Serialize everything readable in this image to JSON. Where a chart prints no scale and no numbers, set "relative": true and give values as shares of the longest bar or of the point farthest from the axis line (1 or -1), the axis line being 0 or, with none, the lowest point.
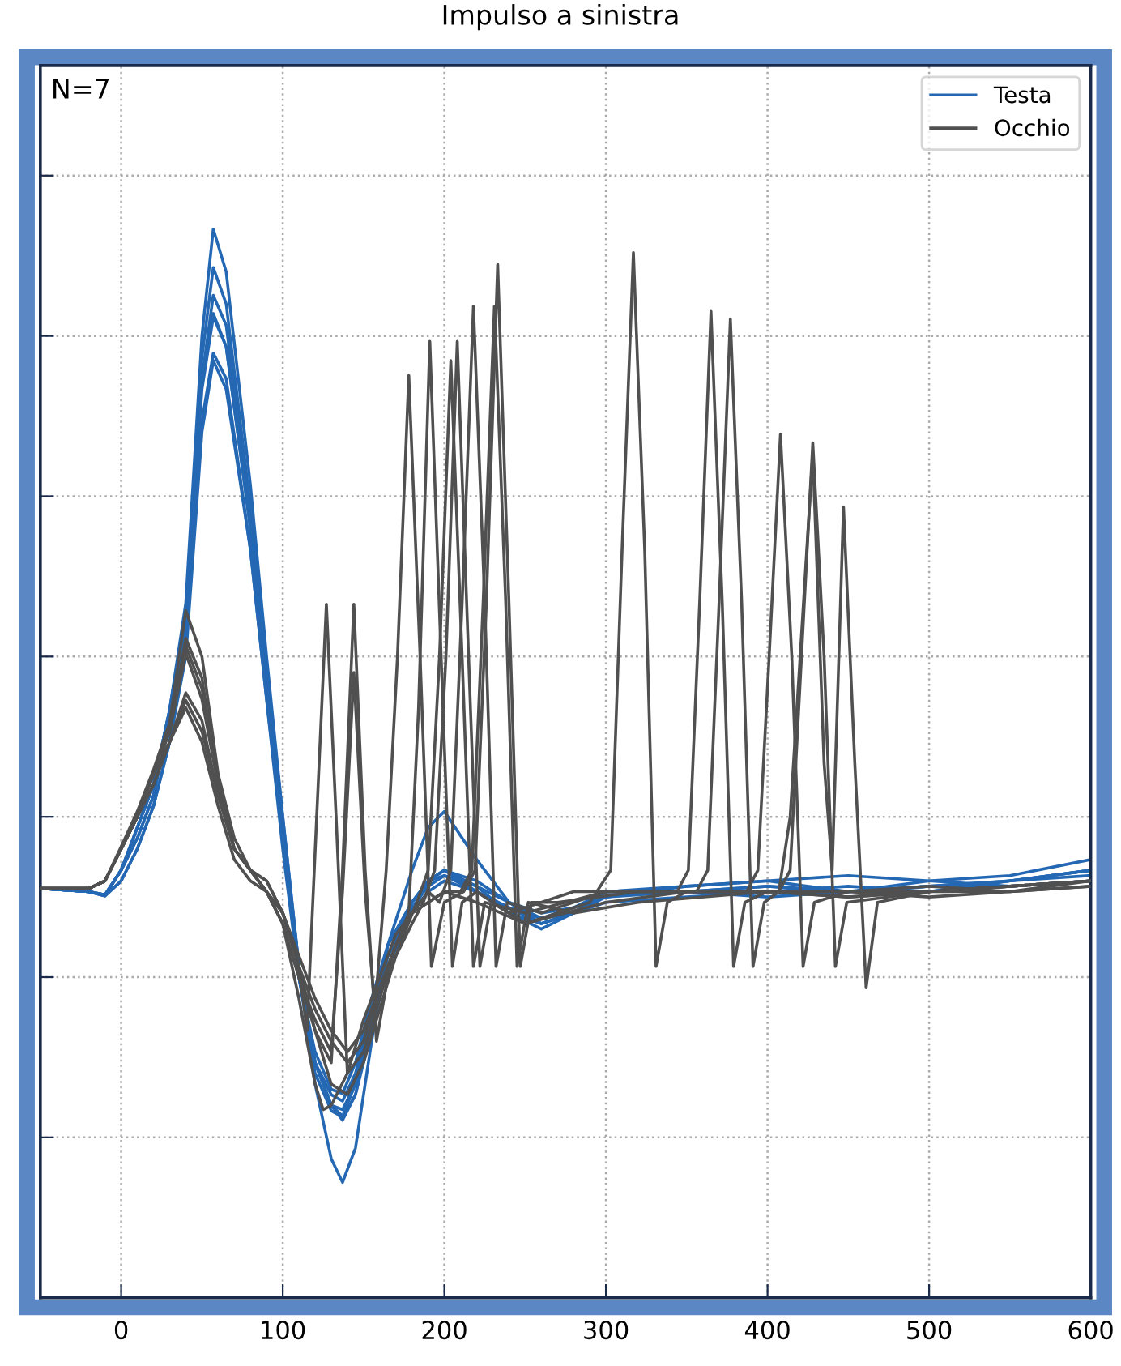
{
  "chart_data": {
    "type": "line",
    "title": "Impulso a sinistra",
    "relative": true,
    "xlim": [
      -50,
      600
    ],
    "xticks": [
      0,
      100,
      200,
      300,
      400,
      500,
      600
    ],
    "grid": true,
    "legend": "top right",
    "tick_labels": "x",
    "annotations": [
      "N=7"
    ],
    "series": [
      {
        "name": "Testa",
        "color": "#2468b4",
        "x": [
          -50,
          -20,
          -10,
          0,
          10,
          20,
          30,
          40,
          50,
          57,
          65,
          80,
          90,
          100,
          110,
          120,
          130,
          137,
          145,
          155,
          165,
          180,
          190,
          200,
          220,
          240,
          260,
          280,
          300,
          350,
          400,
          450,
          500,
          550,
          600
        ],
        "values": [
          0.383,
          0.38,
          0.377,
          0.4,
          0.44,
          0.48,
          0.55,
          0.65,
          0.9,
          1.0,
          0.96,
          0.76,
          0.6,
          0.45,
          0.31,
          0.2,
          0.13,
          0.108,
          0.14,
          0.24,
          0.33,
          0.4,
          0.44,
          0.455,
          0.41,
          0.37,
          0.35,
          0.36,
          0.38,
          0.385,
          0.39,
          0.38,
          0.385,
          0.39,
          0.4
        ]
      },
      {
        "color": "#2468b4",
        "x": [
          -50,
          -20,
          -10,
          0,
          10,
          20,
          30,
          40,
          50,
          57,
          65,
          80,
          90,
          100,
          110,
          120,
          130,
          137,
          145,
          155,
          165,
          180,
          190,
          200,
          220,
          240,
          260,
          280,
          300,
          350,
          400,
          450,
          500,
          550,
          600
        ],
        "values": [
          0.383,
          0.38,
          0.377,
          0.4,
          0.44,
          0.48,
          0.55,
          0.64,
          0.88,
          0.964,
          0.93,
          0.74,
          0.59,
          0.45,
          0.31,
          0.22,
          0.18,
          0.166,
          0.19,
          0.26,
          0.32,
          0.37,
          0.39,
          0.4,
          0.38,
          0.36,
          0.345,
          0.36,
          0.38,
          0.38,
          0.385,
          0.38,
          0.39,
          0.395,
          0.41
        ]
      },
      {
        "color": "#2468b4",
        "x": [
          -50,
          -20,
          -10,
          0,
          10,
          20,
          30,
          40,
          50,
          57,
          65,
          80,
          90,
          100,
          110,
          120,
          130,
          137,
          145,
          155,
          165,
          180,
          190,
          200,
          220,
          240,
          260,
          280,
          300,
          350,
          400,
          450,
          500,
          550,
          600
        ],
        "values": [
          0.383,
          0.38,
          0.376,
          0.4,
          0.43,
          0.47,
          0.54,
          0.63,
          0.86,
          0.938,
          0.91,
          0.73,
          0.58,
          0.44,
          0.3,
          0.21,
          0.175,
          0.169,
          0.19,
          0.25,
          0.31,
          0.36,
          0.39,
          0.4,
          0.385,
          0.36,
          0.35,
          0.36,
          0.38,
          0.38,
          0.38,
          0.385,
          0.38,
          0.39,
          0.4
        ]
      },
      {
        "color": "#2468b4",
        "x": [
          -50,
          -20,
          -10,
          0,
          10,
          20,
          30,
          40,
          50,
          57,
          65,
          80,
          90,
          100,
          110,
          120,
          130,
          137,
          145,
          155,
          165,
          180,
          190,
          200,
          220,
          240,
          260,
          280,
          300,
          350,
          400,
          450,
          500,
          550,
          600
        ],
        "values": [
          0.383,
          0.38,
          0.377,
          0.4,
          0.44,
          0.48,
          0.55,
          0.64,
          0.86,
          0.921,
          0.89,
          0.72,
          0.58,
          0.44,
          0.31,
          0.22,
          0.18,
          0.176,
          0.2,
          0.26,
          0.32,
          0.365,
          0.385,
          0.395,
          0.38,
          0.365,
          0.35,
          0.36,
          0.375,
          0.38,
          0.385,
          0.38,
          0.385,
          0.39,
          0.395
        ]
      },
      {
        "color": "#2468b4",
        "x": [
          -50,
          -20,
          -10,
          0,
          10,
          20,
          30,
          40,
          50,
          57,
          65,
          80,
          90,
          100,
          110,
          120,
          130,
          137,
          145,
          155,
          165,
          180,
          190,
          200,
          220,
          240,
          260,
          280,
          300,
          350,
          400,
          450,
          500,
          550,
          600
        ],
        "values": [
          0.383,
          0.38,
          0.377,
          0.4,
          0.43,
          0.47,
          0.54,
          0.63,
          0.85,
          0.918,
          0.89,
          0.72,
          0.57,
          0.43,
          0.3,
          0.22,
          0.19,
          0.184,
          0.21,
          0.27,
          0.32,
          0.36,
          0.38,
          0.39,
          0.38,
          0.365,
          0.355,
          0.365,
          0.375,
          0.385,
          0.39,
          0.395,
          0.39,
          0.385,
          0.39
        ]
      },
      {
        "color": "#2468b4",
        "x": [
          -50,
          -20,
          -10,
          0,
          10,
          20,
          30,
          40,
          50,
          57,
          65,
          80,
          90,
          100,
          110,
          120,
          130,
          137,
          145,
          155,
          165,
          180,
          190,
          200,
          220,
          240,
          260,
          280,
          300,
          350,
          400,
          450,
          500,
          550,
          600
        ],
        "values": [
          0.383,
          0.38,
          0.376,
          0.39,
          0.42,
          0.46,
          0.52,
          0.61,
          0.82,
          0.884,
          0.86,
          0.7,
          0.56,
          0.42,
          0.3,
          0.23,
          0.195,
          0.191,
          0.22,
          0.28,
          0.33,
          0.37,
          0.39,
          0.395,
          0.385,
          0.37,
          0.36,
          0.365,
          0.38,
          0.38,
          0.375,
          0.38,
          0.38,
          0.39,
          0.4
        ]
      },
      {
        "color": "#2468b4",
        "x": [
          -50,
          -20,
          -10,
          0,
          10,
          20,
          30,
          40,
          50,
          57,
          65,
          80,
          90,
          100,
          110,
          120,
          130,
          137,
          145,
          155,
          165,
          180,
          190,
          200,
          220,
          240,
          260,
          280,
          300,
          350,
          400,
          450,
          500,
          550,
          600
        ],
        "values": [
          0.383,
          0.38,
          0.376,
          0.39,
          0.42,
          0.46,
          0.52,
          0.6,
          0.81,
          0.877,
          0.85,
          0.7,
          0.56,
          0.43,
          0.31,
          0.22,
          0.18,
          0.17,
          0.2,
          0.27,
          0.33,
          0.37,
          0.39,
          0.4,
          0.39,
          0.37,
          0.355,
          0.36,
          0.37,
          0.375,
          0.38,
          0.38,
          0.385,
          0.385,
          0.39
        ]
      },
      {
        "name": "Occhio",
        "color": "#505050",
        "x": [
          -50,
          -20,
          -10,
          0,
          10,
          20,
          30,
          40,
          50,
          60,
          70,
          80,
          90,
          100,
          110,
          115,
          121,
          127,
          133,
          140,
          150,
          160,
          170,
          178,
          184,
          191,
          198,
          205,
          211,
          220,
          250,
          290,
          303,
          310,
          317,
          324,
          331,
          338,
          350,
          400,
          450,
          500,
          550,
          600
        ],
        "values": [
          0.383,
          0.383,
          0.39,
          0.422,
          0.455,
          0.494,
          0.538,
          0.643,
          0.6,
          0.49,
          0.43,
          0.4,
          0.39,
          0.36,
          0.31,
          0.25,
          0.45,
          0.649,
          0.45,
          0.21,
          0.23,
          0.28,
          0.33,
          0.36,
          0.55,
          0.895,
          0.6,
          0.31,
          0.37,
          0.38,
          0.35,
          0.37,
          0.4,
          0.7,
          0.978,
          0.7,
          0.31,
          0.37,
          0.38,
          0.38,
          0.375,
          0.38,
          0.385,
          0.39
        ]
      },
      {
        "color": "#505050",
        "x": [
          -50,
          -20,
          -10,
          0,
          10,
          20,
          30,
          40,
          50,
          60,
          70,
          80,
          90,
          100,
          110,
          120,
          130,
          137,
          144,
          151,
          158,
          165,
          175,
          183,
          190,
          197,
          204,
          211,
          218,
          225,
          250,
          300,
          344,
          351,
          358,
          365,
          372,
          379,
          386,
          400,
          450,
          500,
          550,
          600
        ],
        "values": [
          0.383,
          0.383,
          0.39,
          0.42,
          0.45,
          0.49,
          0.53,
          0.617,
          0.58,
          0.48,
          0.42,
          0.4,
          0.39,
          0.36,
          0.31,
          0.25,
          0.22,
          0.4,
          0.649,
          0.4,
          0.24,
          0.3,
          0.34,
          0.37,
          0.4,
          0.6,
          0.877,
          0.6,
          0.31,
          0.37,
          0.36,
          0.38,
          0.38,
          0.4,
          0.65,
          0.923,
          0.65,
          0.31,
          0.37,
          0.38,
          0.38,
          0.385,
          0.38,
          0.39
        ]
      },
      {
        "color": "#505050",
        "x": [
          -50,
          -20,
          -10,
          0,
          10,
          20,
          30,
          40,
          50,
          60,
          70,
          80,
          90,
          100,
          110,
          120,
          130,
          137,
          144,
          151,
          157,
          164,
          171,
          178,
          185,
          192,
          200,
          212,
          219,
          226,
          233,
          240,
          247,
          254,
          270,
          320,
          380,
          387,
          394,
          401,
          408,
          415,
          422,
          429,
          450,
          500,
          550,
          600
        ],
        "values": [
          0.383,
          0.383,
          0.39,
          0.42,
          0.45,
          0.49,
          0.53,
          0.61,
          0.57,
          0.48,
          0.42,
          0.4,
          0.38,
          0.35,
          0.3,
          0.26,
          0.23,
          0.38,
          0.585,
          0.38,
          0.27,
          0.4,
          0.6,
          0.863,
          0.6,
          0.31,
          0.37,
          0.38,
          0.4,
          0.65,
          0.967,
          0.65,
          0.31,
          0.37,
          0.37,
          0.38,
          0.38,
          0.38,
          0.4,
          0.6,
          0.808,
          0.6,
          0.31,
          0.37,
          0.38,
          0.38,
          0.385,
          0.39
        ]
      },
      {
        "color": "#505050",
        "x": [
          -50,
          -20,
          -10,
          0,
          10,
          20,
          30,
          40,
          50,
          60,
          70,
          80,
          90,
          100,
          110,
          120,
          130,
          140,
          150,
          160,
          170,
          180,
          187,
          194,
          201,
          208,
          215,
          222,
          229,
          240,
          280,
          330,
          356,
          363,
          370,
          377,
          384,
          391,
          398,
          407,
          414,
          421,
          428,
          435,
          442,
          449,
          500,
          550,
          600
        ],
        "values": [
          0.383,
          0.383,
          0.39,
          0.42,
          0.45,
          0.49,
          0.53,
          0.603,
          0.56,
          0.48,
          0.42,
          0.4,
          0.38,
          0.35,
          0.3,
          0.25,
          0.2,
          0.19,
          0.22,
          0.27,
          0.32,
          0.35,
          0.37,
          0.4,
          0.6,
          0.895,
          0.6,
          0.31,
          0.37,
          0.36,
          0.38,
          0.38,
          0.38,
          0.4,
          0.65,
          0.916,
          0.65,
          0.31,
          0.37,
          0.38,
          0.4,
          0.6,
          0.8,
          0.6,
          0.31,
          0.37,
          0.38,
          0.385,
          0.39
        ]
      },
      {
        "color": "#505050",
        "x": [
          -50,
          -20,
          -10,
          0,
          10,
          20,
          30,
          40,
          50,
          60,
          70,
          80,
          90,
          100,
          110,
          120,
          130,
          140,
          150,
          160,
          170,
          180,
          190,
          197,
          204,
          211,
          218,
          225,
          232,
          239,
          260,
          300,
          350,
          400,
          407,
          414,
          421,
          428,
          435,
          440,
          447,
          454,
          461,
          468,
          500,
          550,
          600
        ],
        "values": [
          0.383,
          0.383,
          0.39,
          0.42,
          0.45,
          0.49,
          0.52,
          0.566,
          0.54,
          0.47,
          0.42,
          0.4,
          0.38,
          0.36,
          0.31,
          0.27,
          0.24,
          0.22,
          0.24,
          0.29,
          0.33,
          0.36,
          0.38,
          0.37,
          0.4,
          0.65,
          0.928,
          0.65,
          0.31,
          0.37,
          0.36,
          0.38,
          0.38,
          0.38,
          0.38,
          0.45,
          0.62,
          0.79,
          0.5,
          0.4,
          0.74,
          0.5,
          0.29,
          0.37,
          0.38,
          0.385,
          0.39
        ]
      },
      {
        "color": "#505050",
        "x": [
          -50,
          -20,
          -10,
          0,
          10,
          20,
          30,
          40,
          50,
          60,
          70,
          80,
          90,
          100,
          110,
          120,
          130,
          140,
          150,
          160,
          170,
          180,
          190,
          200,
          210,
          217,
          224,
          231,
          238,
          245,
          252,
          280,
          320,
          400,
          450,
          500,
          550,
          600
        ],
        "values": [
          0.383,
          0.383,
          0.39,
          0.42,
          0.45,
          0.48,
          0.52,
          0.559,
          0.53,
          0.47,
          0.42,
          0.4,
          0.38,
          0.36,
          0.32,
          0.28,
          0.25,
          0.23,
          0.25,
          0.29,
          0.33,
          0.36,
          0.37,
          0.38,
          0.38,
          0.4,
          0.65,
          0.928,
          0.65,
          0.31,
          0.37,
          0.36,
          0.37,
          0.38,
          0.38,
          0.375,
          0.38,
          0.385
        ]
      },
      {
        "color": "#505050",
        "x": [
          -50,
          -20,
          -10,
          0,
          10,
          20,
          30,
          40,
          50,
          60,
          70,
          80,
          90,
          100,
          110,
          120,
          125,
          130,
          140,
          150,
          160,
          170,
          180,
          200,
          220,
          250,
          300,
          350,
          400,
          450,
          500,
          550,
          600
        ],
        "values": [
          0.383,
          0.383,
          0.39,
          0.42,
          0.45,
          0.48,
          0.52,
          0.552,
          0.52,
          0.46,
          0.41,
          0.39,
          0.38,
          0.35,
          0.28,
          0.2,
          0.176,
          0.18,
          0.21,
          0.26,
          0.3,
          0.34,
          0.36,
          0.38,
          0.37,
          0.35,
          0.37,
          0.38,
          0.38,
          0.375,
          0.38,
          0.38,
          0.385
        ]
      }
    ]
  }
}
